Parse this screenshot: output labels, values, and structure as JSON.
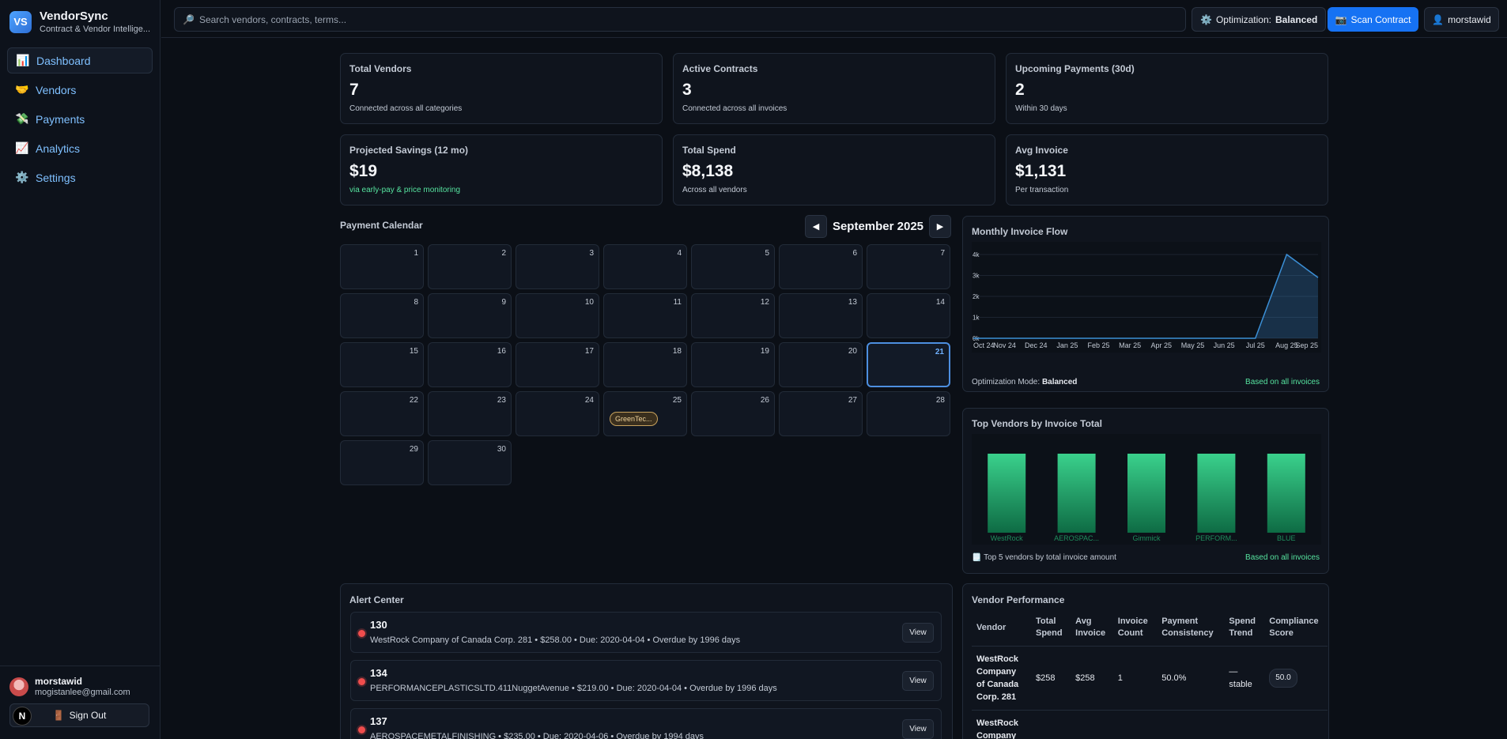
{
  "app": {
    "logo": "VS",
    "name": "VendorSync",
    "subtitle": "Contract & Vendor Intellige..."
  },
  "sidebar": {
    "items": [
      {
        "label": "Dashboard",
        "icon": "📊"
      },
      {
        "label": "Vendors",
        "icon": "🤝"
      },
      {
        "label": "Payments",
        "icon": "💸"
      },
      {
        "label": "Analytics",
        "icon": "📈"
      },
      {
        "label": "Settings",
        "icon": "⚙️"
      }
    ],
    "user": {
      "name": "morstawid",
      "email": "mogistanlee@gmail.com"
    },
    "signout_label": "Sign Out",
    "signout_icon": "🚪",
    "n_badge": "N"
  },
  "topbar": {
    "search_icon": "🔎",
    "search_placeholder": "Search vendors, contracts, terms...",
    "opt_icon": "⚙️",
    "opt_label": "Optimization:",
    "opt_value": "Balanced",
    "scan_icon": "📷",
    "scan_label": "Scan Contract",
    "user_icon": "👤",
    "user_label": "morstawid"
  },
  "stats": [
    {
      "label": "Total Vendors",
      "value": "7",
      "sub": "Connected across all categories"
    },
    {
      "label": "Active Contracts",
      "value": "3",
      "sub": "Connected across all invoices"
    },
    {
      "label": "Upcoming Payments (30d)",
      "value": "2",
      "sub": "Within 30 days"
    },
    {
      "label": "Projected Savings (12 mo)",
      "value": "$19",
      "sub": "via early-pay & price monitoring"
    },
    {
      "label": "Total Spend",
      "value": "$8,138",
      "sub": "Across all vendors"
    },
    {
      "label": "Avg Invoice",
      "value": "$1,131",
      "sub": "Per transaction"
    }
  ],
  "calendar": {
    "title": "Payment Calendar",
    "month": "September 2025",
    "prev": "◀",
    "next": "▶",
    "days": 30,
    "today": 21,
    "events": [
      {
        "day": 25,
        "label": "GreenTec..."
      }
    ]
  },
  "chart_data": [
    {
      "type": "area",
      "title": "Monthly Invoice Flow",
      "categories": [
        "Oct 24",
        "Nov 24",
        "Dec 24",
        "Jan 25",
        "Feb 25",
        "Mar 25",
        "Apr 25",
        "May 25",
        "Jun 25",
        "Jul 25",
        "Aug 25",
        "Sep 25"
      ],
      "values": [
        0,
        0,
        0,
        0,
        0,
        0,
        0,
        0,
        0,
        0,
        4000,
        2900
      ],
      "yticks": [
        "0k",
        "1k",
        "2k",
        "3k",
        "4k"
      ],
      "ylim": [
        0,
        4000
      ],
      "grid": true,
      "line_color": "#3b8fd6",
      "footer_left_label": "Optimization Mode:",
      "footer_left_value": "Balanced",
      "footer_right": "Based on all invoices"
    },
    {
      "type": "bar",
      "title": "Top Vendors by Invoice Total",
      "categories": [
        "WestRock",
        "AEROSPAC...",
        "Gimmick",
        "PERFORM...",
        "BLUE"
      ],
      "values": [
        1,
        1,
        1,
        1,
        1
      ],
      "bar_color": "#2ec07e",
      "footer_icon": "🗒️",
      "footer_left": "Top 5 vendors by total invoice amount",
      "footer_right": "Based on all invoices"
    }
  ],
  "alerts": {
    "title": "Alert Center",
    "view_label": "View",
    "items": [
      {
        "id": "130",
        "desc": "WestRock Company of Canada Corp. 281 • $258.00 • Due: 2020-04-04 • Overdue by 1996 days"
      },
      {
        "id": "134",
        "desc": "PERFORMANCEPLASTICSLTD.411NuggetAvenue • $219.00 • Due: 2020-04-04 • Overdue by 1996 days"
      },
      {
        "id": "137",
        "desc": "AEROSPACEMETALFINISHING • $235.00 • Due: 2020-04-06 • Overdue by 1994 days"
      }
    ]
  },
  "vendor_performance": {
    "title": "Vendor Performance",
    "columns": [
      "Vendor",
      "Total Spend",
      "Avg Invoice",
      "Invoice Count",
      "Payment Consistency",
      "Spend Trend",
      "Compliance Score"
    ],
    "rows": [
      {
        "vendor": "WestRock Company of Canada Corp. 281",
        "total": "$258",
        "avg": "$258",
        "count": "1",
        "consistency": "50.0%",
        "trend": "— stable",
        "score": "50.0"
      },
      {
        "vendor": "WestRock Company",
        "total": "",
        "avg": "",
        "count": "",
        "consistency": "",
        "trend": "",
        "score": ""
      }
    ]
  }
}
